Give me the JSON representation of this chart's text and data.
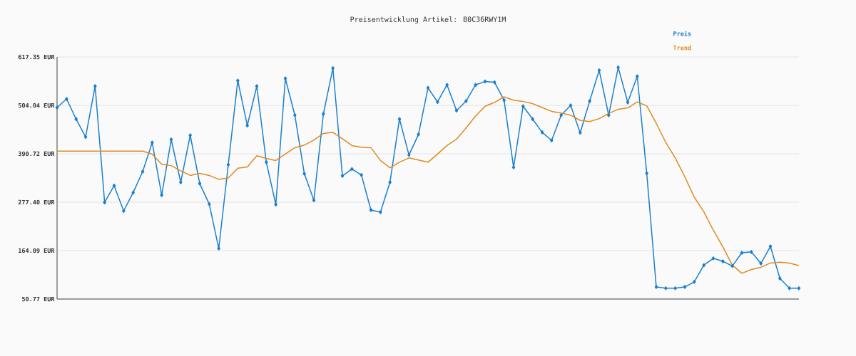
{
  "chart_data": {
    "type": "line",
    "title": "Preisentwicklung Artikel: B0C36RWY1M",
    "categories": [
      null,
      null,
      null,
      null,
      null,
      null,
      null,
      null,
      null,
      null,
      null,
      null,
      null,
      null,
      null,
      null,
      null,
      null,
      null,
      null,
      null,
      null,
      null,
      null,
      null,
      null,
      null,
      null,
      null,
      null,
      null,
      null,
      null,
      null,
      null,
      null,
      null,
      null,
      null,
      null,
      null,
      null,
      null,
      null,
      null,
      null,
      null,
      null,
      null,
      null,
      null,
      null,
      null,
      null,
      null,
      null,
      null,
      null,
      null,
      null,
      null,
      null,
      null,
      null,
      null,
      null,
      null,
      null,
      null,
      null,
      null,
      null,
      null,
      null,
      null,
      null,
      null,
      null,
      null
    ],
    "series": [
      {
        "name": "Preis",
        "color": "#1a7fcf",
        "marker": "diamond",
        "values": [
          499,
          519,
          472,
          430,
          549,
          277,
          316,
          257,
          300,
          349,
          417,
          294,
          424,
          324,
          434,
          321,
          273,
          169,
          365,
          562,
          457,
          549,
          371,
          272,
          567,
          481,
          344,
          282,
          484,
          591,
          339,
          355,
          341,
          259,
          254,
          324,
          472,
          388,
          436,
          545,
          512,
          552,
          492,
          514,
          552,
          560,
          558,
          516,
          359,
          502,
          472,
          441,
          422,
          481,
          504,
          440,
          514,
          586,
          481,
          593,
          511,
          572,
          345,
          79,
          76,
          76,
          79,
          91,
          130,
          146,
          139,
          128,
          159,
          161,
          134,
          174,
          99,
          76,
          76
        ]
      },
      {
        "name": "Trend",
        "color": "#e08a1e",
        "marker": "none",
        "values": [
          397,
          397,
          397,
          397,
          397,
          397,
          397,
          397,
          397,
          397,
          390,
          366,
          363,
          351,
          340,
          345,
          340,
          331,
          334,
          357,
          360,
          386,
          380,
          375,
          390,
          405,
          411,
          423,
          438,
          441,
          426,
          410,
          406,
          405,
          375,
          358,
          371,
          381,
          376,
          371,
          390,
          410,
          425,
          451,
          479,
          502,
          511,
          524,
          516,
          513,
          508,
          499,
          490,
          486,
          481,
          469,
          466,
          473,
          485,
          495,
          498,
          512,
          503,
          462,
          417,
          381,
          337,
          289,
          255,
          212,
          173,
          130,
          111,
          120,
          125,
          135,
          137,
          135,
          129
        ]
      }
    ],
    "ylim": [
      50.77,
      617.35
    ],
    "yticks": [
      {
        "value": 50.77,
        "label": "50.77 EUR"
      },
      {
        "value": 164.09,
        "label": "164.09 EUR"
      },
      {
        "value": 277.4,
        "label": "277.40 EUR"
      },
      {
        "value": 390.72,
        "label": "390.72 EUR"
      },
      {
        "value": 504.04,
        "label": "504.04 EUR"
      },
      {
        "value": 617.35,
        "label": "617.35 EUR"
      }
    ],
    "grid": "y",
    "legend": "top right",
    "tick_labels": "y",
    "line_style": "solid"
  }
}
